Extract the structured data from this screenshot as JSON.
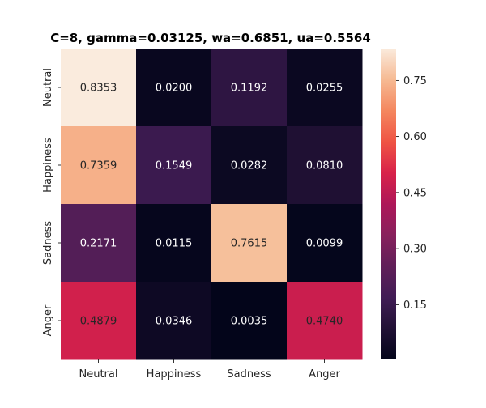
{
  "chart_data": {
    "type": "heatmap",
    "title": "C=8, gamma=0.03125, wa=0.6851, ua=0.5564",
    "xlabel": "",
    "ylabel": "",
    "x_categories": [
      "Neutral",
      "Happiness",
      "Sadness",
      "Anger"
    ],
    "y_categories": [
      "Neutral",
      "Happiness",
      "Sadness",
      "Anger"
    ],
    "values": [
      [
        0.8353,
        0.02,
        0.1192,
        0.0255
      ],
      [
        0.7359,
        0.1549,
        0.0282,
        0.081
      ],
      [
        0.2171,
        0.0115,
        0.7615,
        0.0099
      ],
      [
        0.4879,
        0.0346,
        0.0035,
        0.474
      ]
    ],
    "cell_labels": [
      [
        "0.8353",
        "0.0200",
        "0.1192",
        "0.0255"
      ],
      [
        "0.7359",
        "0.1549",
        "0.0282",
        "0.0810"
      ],
      [
        "0.2171",
        "0.0115",
        "0.7615",
        "0.0099"
      ],
      [
        "0.4879",
        "0.0346",
        "0.0035",
        "0.4740"
      ]
    ],
    "colorbar": {
      "colormap": "rocket",
      "vmin": 0.0035,
      "vmax": 0.8353,
      "ticks": [
        0.15,
        0.3,
        0.45,
        0.6,
        0.75
      ],
      "tick_labels": [
        "0.15",
        "0.30",
        "0.45",
        "0.60",
        "0.75"
      ],
      "position": "right"
    },
    "grid": false,
    "legend": "none"
  }
}
